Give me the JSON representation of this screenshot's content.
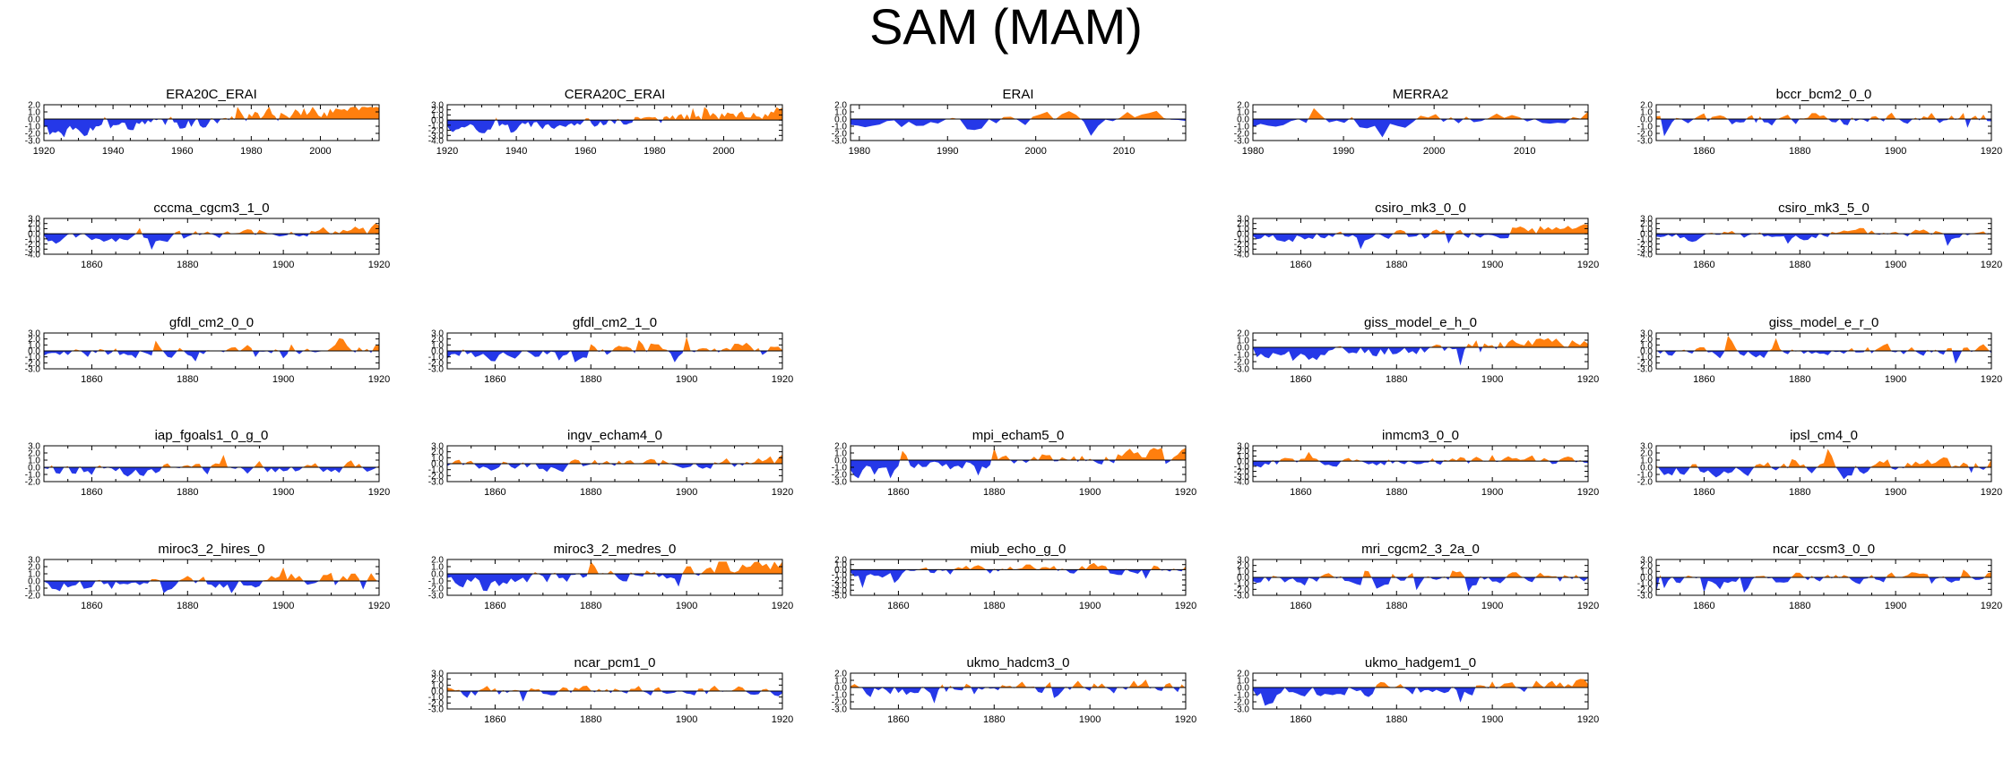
{
  "title": "SAM (MAM)",
  "colors": {
    "positive": "#ff7f0e",
    "negative": "#2538e8",
    "axis": "#000000"
  },
  "chart_data": [
    {
      "type": "area",
      "title": "ERA20C_ERAI",
      "row": 0,
      "col": 0,
      "x_range": [
        1920,
        2017
      ],
      "x_ticks": [
        1920,
        1940,
        1960,
        1980,
        2000
      ],
      "ylim": [
        -3.0,
        2.0
      ],
      "y_ticks": [
        2.0,
        1.0,
        0.0,
        -1.0,
        -2.0,
        -3.0
      ],
      "y_tick_labels": [
        "2.0",
        "1.0",
        "0.0",
        "-1.0",
        "-2.0",
        "-3.0"
      ],
      "trend": 1.0,
      "seed": 1
    },
    {
      "type": "area",
      "title": "CERA20C_ERAI",
      "row": 0,
      "col": 1,
      "x_range": [
        1920,
        2017
      ],
      "x_ticks": [
        1920,
        1940,
        1960,
        1980,
        2000
      ],
      "ylim": [
        -4.0,
        3.0
      ],
      "y_ticks": [
        3.0,
        2.0,
        1.0,
        0.0,
        -1.0,
        -2.0,
        -3.0,
        -4.0
      ],
      "y_tick_labels": [
        "3.0",
        "2.0",
        "1.0",
        "0.0",
        "-1.0",
        "-2.0",
        "-3.0",
        "-4.0"
      ],
      "trend": 0.8,
      "seed": 2
    },
    {
      "type": "area",
      "title": "ERAI",
      "row": 0,
      "col": 2,
      "x_range": [
        1979,
        2017
      ],
      "x_ticks": [
        1980,
        1990,
        2000,
        2010
      ],
      "ylim": [
        -3.0,
        2.0
      ],
      "y_ticks": [
        2.0,
        1.0,
        0.0,
        -1.0,
        -2.0,
        -3.0
      ],
      "y_tick_labels": [
        "2.0",
        "1.0",
        "0.0",
        "-1.0",
        "-2.0",
        "-3.0"
      ],
      "trend": 0.3,
      "seed": 3
    },
    {
      "type": "area",
      "title": "MERRA2",
      "row": 0,
      "col": 3,
      "x_range": [
        1980,
        2017
      ],
      "x_ticks": [
        1980,
        1990,
        2000,
        2010
      ],
      "ylim": [
        -3.0,
        2.0
      ],
      "y_ticks": [
        2.0,
        1.0,
        0.0,
        -1.0,
        -2.0,
        -3.0
      ],
      "y_tick_labels": [
        "2.0",
        "1.0",
        "0.0",
        "-1.0",
        "-2.0",
        "-3.0"
      ],
      "trend": 0.3,
      "seed": 4
    },
    {
      "type": "area",
      "title": "bccr_bcm2_0_0",
      "row": 0,
      "col": 4,
      "x_range": [
        1850,
        1920
      ],
      "x_ticks": [
        1860,
        1880,
        1900,
        1920
      ],
      "ylim": [
        -3.0,
        2.0
      ],
      "y_ticks": [
        2.0,
        1.0,
        0.0,
        -1.0,
        -2.0,
        -3.0
      ],
      "y_tick_labels": [
        "2.0",
        "1.0",
        "0.0",
        "-1.0",
        "-2.0",
        "-3.0"
      ],
      "trend": 0.2,
      "seed": 5
    },
    {
      "type": "area",
      "title": "cccma_cgcm3_1_0",
      "row": 1,
      "col": 0,
      "x_range": [
        1850,
        1920
      ],
      "x_ticks": [
        1860,
        1880,
        1900,
        1920
      ],
      "ylim": [
        -4.0,
        3.0
      ],
      "y_ticks": [
        3.0,
        2.0,
        1.0,
        0.0,
        -1.0,
        -2.0,
        -3.0,
        -4.0
      ],
      "y_tick_labels": [
        "3.0",
        "2.0",
        "1.0",
        "0.0",
        "-1.0",
        "-2.0",
        "-3.0",
        "-4.0"
      ],
      "trend": 0.5,
      "seed": 6
    },
    {
      "type": "area",
      "title": "csiro_mk3_0_0",
      "row": 1,
      "col": 3,
      "x_range": [
        1850,
        1920
      ],
      "x_ticks": [
        1860,
        1880,
        1900,
        1920
      ],
      "ylim": [
        -4.0,
        3.0
      ],
      "y_ticks": [
        3.0,
        2.0,
        1.0,
        0.0,
        -1.0,
        -2.0,
        -3.0,
        -4.0
      ],
      "y_tick_labels": [
        "3.0",
        "2.0",
        "1.0",
        "0.0",
        "-1.0",
        "-2.0",
        "-3.0",
        "-4.0"
      ],
      "trend": 0.4,
      "seed": 7
    },
    {
      "type": "area",
      "title": "csiro_mk3_5_0",
      "row": 1,
      "col": 4,
      "x_range": [
        1850,
        1920
      ],
      "x_ticks": [
        1860,
        1880,
        1900,
        1920
      ],
      "ylim": [
        -4.0,
        3.0
      ],
      "y_ticks": [
        3.0,
        2.0,
        1.0,
        0.0,
        -1.0,
        -2.0,
        -3.0,
        -4.0
      ],
      "y_tick_labels": [
        "3.0",
        "2.0",
        "1.0",
        "0.0",
        "-1.0",
        "-2.0",
        "-3.0",
        "-4.0"
      ],
      "trend": 0.3,
      "seed": 8
    },
    {
      "type": "area",
      "title": "gfdl_cm2_0_0",
      "row": 2,
      "col": 0,
      "x_range": [
        1850,
        1920
      ],
      "x_ticks": [
        1860,
        1880,
        1900,
        1920
      ],
      "ylim": [
        -3.0,
        3.0
      ],
      "y_ticks": [
        3.0,
        2.0,
        1.0,
        0.0,
        -1.0,
        -2.0,
        -3.0
      ],
      "y_tick_labels": [
        "3.0",
        "2.0",
        "1.0",
        "0.0",
        "-1.0",
        "-2.0",
        "-3.0"
      ],
      "trend": 0.3,
      "seed": 9
    },
    {
      "type": "area",
      "title": "gfdl_cm2_1_0",
      "row": 2,
      "col": 1,
      "x_range": [
        1850,
        1920
      ],
      "x_ticks": [
        1860,
        1880,
        1900,
        1920
      ],
      "ylim": [
        -3.0,
        3.0
      ],
      "y_ticks": [
        3.0,
        2.0,
        1.0,
        0.0,
        -1.0,
        -2.0,
        -3.0
      ],
      "y_tick_labels": [
        "3.0",
        "2.0",
        "1.0",
        "0.0",
        "-1.0",
        "-2.0",
        "-3.0"
      ],
      "trend": 0.5,
      "seed": 10
    },
    {
      "type": "area",
      "title": "giss_model_e_h_0",
      "row": 2,
      "col": 3,
      "x_range": [
        1850,
        1920
      ],
      "x_ticks": [
        1860,
        1880,
        1900,
        1920
      ],
      "ylim": [
        -3.0,
        2.0
      ],
      "y_ticks": [
        2.0,
        1.0,
        0.0,
        -1.0,
        -2.0,
        -3.0
      ],
      "y_tick_labels": [
        "2.0",
        "1.0",
        "0.0",
        "-1.0",
        "-2.0",
        "-3.0"
      ],
      "trend": 0.6,
      "seed": 11
    },
    {
      "type": "area",
      "title": "giss_model_e_r_0",
      "row": 2,
      "col": 4,
      "x_range": [
        1850,
        1920
      ],
      "x_ticks": [
        1860,
        1880,
        1900,
        1920
      ],
      "ylim": [
        -3.0,
        3.0
      ],
      "y_ticks": [
        3.0,
        2.0,
        1.0,
        0.0,
        -1.0,
        -2.0,
        -3.0
      ],
      "y_tick_labels": [
        "3.0",
        "2.0",
        "1.0",
        "0.0",
        "-1.0",
        "-2.0",
        "-3.0"
      ],
      "trend": 0.2,
      "seed": 12
    },
    {
      "type": "area",
      "title": "iap_fgoals1_0_g_0",
      "row": 3,
      "col": 0,
      "x_range": [
        1850,
        1920
      ],
      "x_ticks": [
        1860,
        1880,
        1900,
        1920
      ],
      "ylim": [
        -2.0,
        3.0
      ],
      "y_ticks": [
        3.0,
        2.0,
        1.0,
        0.0,
        -1.0,
        -2.0
      ],
      "y_tick_labels": [
        "3.0",
        "2.0",
        "1.0",
        "0.0",
        "-1.0",
        "-2.0"
      ],
      "trend": 0.2,
      "seed": 13
    },
    {
      "type": "area",
      "title": "ingv_echam4_0",
      "row": 3,
      "col": 1,
      "x_range": [
        1850,
        1920
      ],
      "x_ticks": [
        1860,
        1880,
        1900,
        1920
      ],
      "ylim": [
        -3.0,
        3.0
      ],
      "y_ticks": [
        3.0,
        2.0,
        1.0,
        0.0,
        -1.0,
        -2.0,
        -3.0
      ],
      "y_tick_labels": [
        "3.0",
        "2.0",
        "1.0",
        "0.0",
        "-1.0",
        "-2.0",
        "-3.0"
      ],
      "trend": 0.2,
      "seed": 14
    },
    {
      "type": "area",
      "title": "mpi_echam5_0",
      "row": 3,
      "col": 2,
      "x_range": [
        1850,
        1920
      ],
      "x_ticks": [
        1860,
        1880,
        1900,
        1920
      ],
      "ylim": [
        -3.0,
        2.0
      ],
      "y_ticks": [
        2.0,
        1.0,
        0.0,
        -1.0,
        -2.0,
        -3.0
      ],
      "y_tick_labels": [
        "2.0",
        "1.0",
        "0.0",
        "-1.0",
        "-2.0",
        "-3.0"
      ],
      "trend": 0.8,
      "seed": 15
    },
    {
      "type": "area",
      "title": "inmcm3_0_0",
      "row": 3,
      "col": 3,
      "x_range": [
        1850,
        1920
      ],
      "x_ticks": [
        1860,
        1880,
        1900,
        1920
      ],
      "ylim": [
        -4.0,
        3.0
      ],
      "y_ticks": [
        3.0,
        2.0,
        1.0,
        0.0,
        -1.0,
        -2.0,
        -3.0,
        -4.0
      ],
      "y_tick_labels": [
        "3.0",
        "2.0",
        "1.0",
        "0.0",
        "-1.0",
        "-2.0",
        "-3.0",
        "-4.0"
      ],
      "trend": 0.1,
      "seed": 16
    },
    {
      "type": "area",
      "title": "ipsl_cm4_0",
      "row": 3,
      "col": 4,
      "x_range": [
        1850,
        1920
      ],
      "x_ticks": [
        1860,
        1880,
        1900,
        1920
      ],
      "ylim": [
        -2.0,
        3.0
      ],
      "y_ticks": [
        3.0,
        2.0,
        1.0,
        0.0,
        -1.0,
        -2.0
      ],
      "y_tick_labels": [
        "3.0",
        "2.0",
        "1.0",
        "0.0",
        "-1.0",
        "-2.0"
      ],
      "trend": 0.3,
      "seed": 17
    },
    {
      "type": "area",
      "title": "miroc3_2_hires_0",
      "row": 4,
      "col": 0,
      "x_range": [
        1850,
        1920
      ],
      "x_ticks": [
        1860,
        1880,
        1900,
        1920
      ],
      "ylim": [
        -2.0,
        3.0
      ],
      "y_ticks": [
        3.0,
        2.0,
        1.0,
        0.0,
        -1.0,
        -2.0
      ],
      "y_tick_labels": [
        "3.0",
        "2.0",
        "1.0",
        "0.0",
        "-1.0",
        "-2.0"
      ],
      "trend": 0.4,
      "seed": 18
    },
    {
      "type": "area",
      "title": "miroc3_2_medres_0",
      "row": 4,
      "col": 1,
      "x_range": [
        1850,
        1920
      ],
      "x_ticks": [
        1860,
        1880,
        1900,
        1920
      ],
      "ylim": [
        -3.0,
        2.0
      ],
      "y_ticks": [
        2.0,
        1.0,
        0.0,
        -1.0,
        -2.0,
        -3.0
      ],
      "y_tick_labels": [
        "2.0",
        "1.0",
        "0.0",
        "-1.0",
        "-2.0",
        "-3.0"
      ],
      "trend": 0.6,
      "seed": 19
    },
    {
      "type": "area",
      "title": "miub_echo_g_0",
      "row": 4,
      "col": 2,
      "x_range": [
        1850,
        1920
      ],
      "x_ticks": [
        1860,
        1880,
        1900,
        1920
      ],
      "ylim": [
        -5.0,
        2.0
      ],
      "y_ticks": [
        2.0,
        1.0,
        0.0,
        -1.0,
        -2.0,
        -3.0,
        -4.0,
        -5.0
      ],
      "y_tick_labels": [
        "2.0",
        "1.0",
        "0.0",
        "-1.0",
        "-2.0",
        "-3.0",
        "-4.0",
        "-5.0"
      ],
      "trend": 0.3,
      "seed": 20
    },
    {
      "type": "area",
      "title": "mri_cgcm2_3_2a_0",
      "row": 4,
      "col": 3,
      "x_range": [
        1850,
        1920
      ],
      "x_ticks": [
        1860,
        1880,
        1900,
        1920
      ],
      "ylim": [
        -3.0,
        3.0
      ],
      "y_ticks": [
        3.0,
        2.0,
        1.0,
        0.0,
        -1.0,
        -2.0,
        -3.0
      ],
      "y_tick_labels": [
        "3.0",
        "2.0",
        "1.0",
        "0.0",
        "-1.0",
        "-2.0",
        "-3.0"
      ],
      "trend": 0.2,
      "seed": 21
    },
    {
      "type": "area",
      "title": "ncar_ccsm3_0_0",
      "row": 4,
      "col": 4,
      "x_range": [
        1850,
        1920
      ],
      "x_ticks": [
        1860,
        1880,
        1900,
        1920
      ],
      "ylim": [
        -3.0,
        3.0
      ],
      "y_ticks": [
        3.0,
        2.0,
        1.0,
        0.0,
        -1.0,
        -2.0,
        -3.0
      ],
      "y_tick_labels": [
        "3.0",
        "2.0",
        "1.0",
        "0.0",
        "-1.0",
        "-2.0",
        "-3.0"
      ],
      "trend": 0.1,
      "seed": 22
    },
    {
      "type": "area",
      "title": "ncar_pcm1_0",
      "row": 5,
      "col": 1,
      "x_range": [
        1850,
        1920
      ],
      "x_ticks": [
        1860,
        1880,
        1900,
        1920
      ],
      "ylim": [
        -3.0,
        3.0
      ],
      "y_ticks": [
        3.0,
        2.0,
        1.0,
        0.0,
        -1.0,
        -2.0,
        -3.0
      ],
      "y_tick_labels": [
        "3.0",
        "2.0",
        "1.0",
        "0.0",
        "-1.0",
        "-2.0",
        "-3.0"
      ],
      "trend": 0.1,
      "seed": 23
    },
    {
      "type": "area",
      "title": "ukmo_hadcm3_0",
      "row": 5,
      "col": 2,
      "x_range": [
        1850,
        1920
      ],
      "x_ticks": [
        1860,
        1880,
        1900,
        1920
      ],
      "ylim": [
        -3.0,
        2.0
      ],
      "y_ticks": [
        2.0,
        1.0,
        0.0,
        -1.0,
        -2.0,
        -3.0
      ],
      "y_tick_labels": [
        "2.0",
        "1.0",
        "0.0",
        "-1.0",
        "-2.0",
        "-3.0"
      ],
      "trend": 0.2,
      "seed": 24
    },
    {
      "type": "area",
      "title": "ukmo_hadgem1_0",
      "row": 5,
      "col": 3,
      "x_range": [
        1850,
        1920
      ],
      "x_ticks": [
        1860,
        1880,
        1900,
        1920
      ],
      "ylim": [
        -3.0,
        2.0
      ],
      "y_ticks": [
        2.0,
        1.0,
        0.0,
        -1.0,
        -2.0,
        -3.0
      ],
      "y_tick_labels": [
        "2.0",
        "1.0",
        "0.0",
        "-1.0",
        "-2.0",
        "-3.0"
      ],
      "trend": 0.4,
      "seed": 25
    }
  ]
}
